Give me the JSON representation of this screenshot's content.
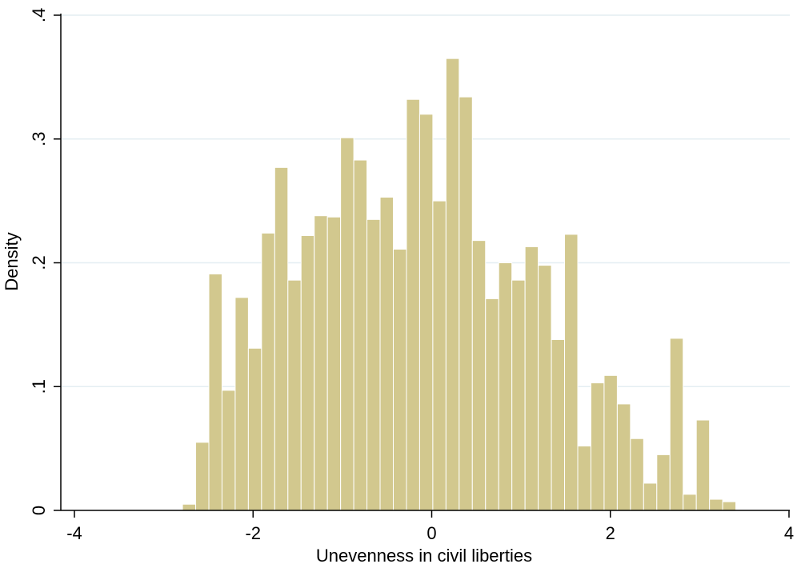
{
  "chart_data": {
    "type": "bar",
    "xlabel": "Unevenness in civil liberties",
    "ylabel": "Density",
    "xlim": [
      -4.1,
      4.1
    ],
    "ylim": [
      0,
      0.4
    ],
    "grid": true,
    "colors": {
      "bar": "#d2c88e",
      "grid": "#e4eef2",
      "axis": "#000000"
    },
    "x_ticks": [
      {
        "value": -4,
        "label": "-4"
      },
      {
        "value": -2,
        "label": "-2"
      },
      {
        "value": 0,
        "label": "0"
      },
      {
        "value": 2,
        "label": "2"
      },
      {
        "value": 4,
        "label": "4"
      }
    ],
    "y_ticks": [
      {
        "value": 0,
        "label": "0"
      },
      {
        "value": 0.1,
        "label": ".1"
      },
      {
        "value": 0.2,
        "label": ".2"
      },
      {
        "value": 0.3,
        "label": ".3"
      },
      {
        "value": 0.4,
        "label": ".4"
      }
    ],
    "bin_start": -2.79,
    "bin_width": 0.1475,
    "values": [
      0.005,
      0.055,
      0.191,
      0.097,
      0.172,
      0.131,
      0.224,
      0.277,
      0.186,
      0.222,
      0.238,
      0.237,
      0.301,
      0.283,
      0.235,
      0.253,
      0.211,
      0.332,
      0.32,
      0.25,
      0.365,
      0.334,
      0.218,
      0.171,
      0.2,
      0.186,
      0.213,
      0.198,
      0.138,
      0.223,
      0.052,
      0.103,
      0.109,
      0.086,
      0.058,
      0.022,
      0.045,
      0.139,
      0.013,
      0.073,
      0.009,
      0.007
    ]
  }
}
